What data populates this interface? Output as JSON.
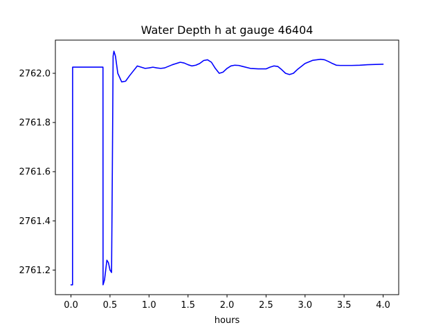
{
  "chart_data": {
    "type": "line",
    "title": "Water Depth h at gauge 46404",
    "xlabel": "hours",
    "ylabel": "",
    "xlim": [
      -0.2,
      4.2
    ],
    "ylim": [
      2761.1,
      2762.135
    ],
    "xticks": [
      0.0,
      0.5,
      1.0,
      1.5,
      2.0,
      2.5,
      3.0,
      3.5,
      4.0
    ],
    "xtick_labels": [
      "0.0",
      "0.5",
      "1.0",
      "1.5",
      "2.0",
      "2.5",
      "3.0",
      "3.5",
      "4.0"
    ],
    "yticks": [
      2761.2,
      2761.4,
      2761.6,
      2761.8,
      2762.0
    ],
    "ytick_labels": [
      "2761.2",
      "2761.4",
      "2761.6",
      "2761.8",
      "2762.0"
    ],
    "grid": false,
    "legend": "none",
    "series": [
      {
        "color": "#0000ff",
        "x": [
          0.0,
          0.02,
          0.021,
          0.41,
          0.411,
          0.43,
          0.46,
          0.48,
          0.5,
          0.52,
          0.53,
          0.54,
          0.55,
          0.57,
          0.6,
          0.65,
          0.7,
          0.75,
          0.8,
          0.85,
          0.9,
          0.95,
          1.0,
          1.05,
          1.1,
          1.15,
          1.2,
          1.3,
          1.4,
          1.45,
          1.5,
          1.55,
          1.6,
          1.65,
          1.7,
          1.75,
          1.8,
          1.85,
          1.9,
          1.95,
          2.0,
          2.05,
          2.1,
          2.15,
          2.2,
          2.3,
          2.4,
          2.5,
          2.55,
          2.6,
          2.65,
          2.7,
          2.75,
          2.8,
          2.85,
          2.9,
          3.0,
          3.1,
          3.2,
          3.25,
          3.3,
          3.35,
          3.4,
          3.45,
          3.5,
          3.6,
          3.7,
          3.8,
          3.9,
          4.0
        ],
        "y": [
          2761.14,
          2761.14,
          2762.025,
          2762.025,
          2761.14,
          2761.16,
          2761.24,
          2761.23,
          2761.2,
          2761.19,
          2761.6,
          2762.07,
          2762.09,
          2762.07,
          2762.0,
          2761.965,
          2761.968,
          2761.99,
          2762.01,
          2762.03,
          2762.025,
          2762.02,
          2762.022,
          2762.025,
          2762.022,
          2762.02,
          2762.022,
          2762.035,
          2762.045,
          2762.042,
          2762.035,
          2762.03,
          2762.033,
          2762.04,
          2762.052,
          2762.055,
          2762.045,
          2762.02,
          2762.0,
          2762.005,
          2762.02,
          2762.03,
          2762.033,
          2762.032,
          2762.028,
          2762.02,
          2762.018,
          2762.018,
          2762.025,
          2762.03,
          2762.028,
          2762.015,
          2762.0,
          2761.995,
          2762.0,
          2762.015,
          2762.04,
          2762.053,
          2762.057,
          2762.055,
          2762.048,
          2762.04,
          2762.033,
          2762.032,
          2762.032,
          2762.032,
          2762.033,
          2762.035,
          2762.036,
          2762.037
        ]
      }
    ]
  }
}
